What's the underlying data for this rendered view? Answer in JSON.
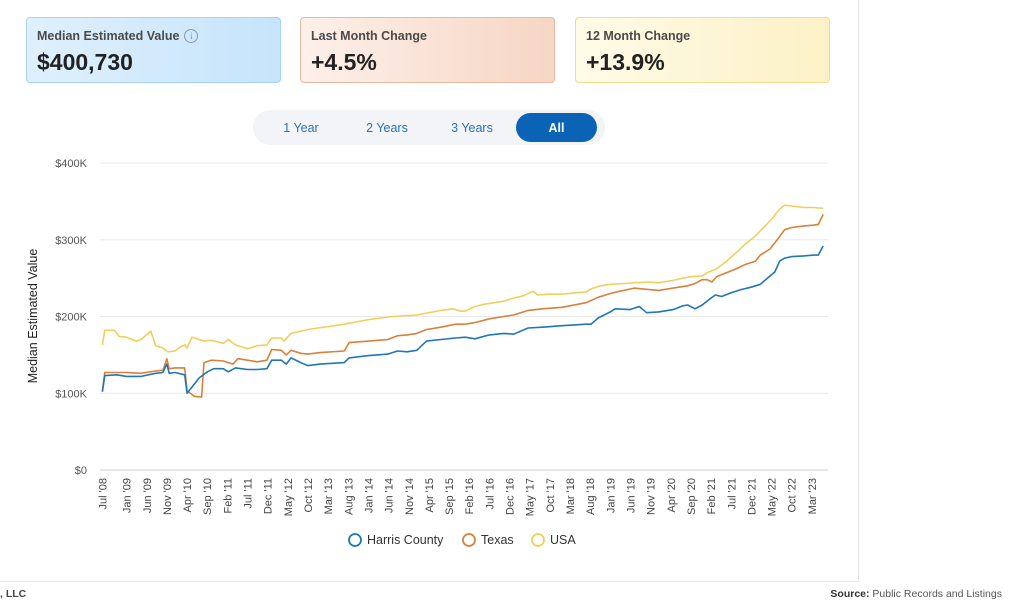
{
  "cards": [
    {
      "label": "Median Estimated Value",
      "value": "$400,730",
      "has_info": true
    },
    {
      "label": "Last Month Change",
      "value": "+4.5%"
    },
    {
      "label": "12 Month Change",
      "value": "+13.9%"
    }
  ],
  "tabs": [
    {
      "label": "1 Year",
      "active": false
    },
    {
      "label": "2 Years",
      "active": false
    },
    {
      "label": "3 Years",
      "active": false
    },
    {
      "label": "All",
      "active": true
    }
  ],
  "footer": {
    "left": ", LLC",
    "source_label": "Source:",
    "source_text": "Public Records and Listings"
  },
  "chart_data": {
    "type": "line",
    "title": "",
    "xlabel": "",
    "ylabel": "Median Estimated Value",
    "ylim": [
      0,
      400000
    ],
    "y_ticks": [
      0,
      100000,
      200000,
      300000,
      400000
    ],
    "y_tick_labels": [
      "$0",
      "$100K",
      "$200K",
      "$300K",
      "$400K"
    ],
    "x_ticks": [
      2008.5,
      2009.0,
      2009.4167,
      2009.8333,
      2010.25,
      2010.6667,
      2011.0833,
      2011.5,
      2011.9167,
      2012.3333,
      2012.75,
      2013.1667,
      2013.5833,
      2014.0,
      2014.4167,
      2014.8333,
      2015.25,
      2015.6667,
      2016.0833,
      2016.5,
      2016.9167,
      2017.3333,
      2017.75,
      2018.1667,
      2018.5833,
      2019.0,
      2019.4167,
      2019.8333,
      2020.25,
      2020.6667,
      2021.0833,
      2021.5,
      2021.9167,
      2022.3333,
      2022.75,
      2023.1667
    ],
    "x_tick_labels": [
      "Jul '08",
      "Jan '09",
      "Jun '09",
      "Nov '09",
      "Apr '10",
      "Sep '10",
      "Feb '11",
      "Jul '11",
      "Dec '11",
      "May '12",
      "Oct '12",
      "Mar '13",
      "Aug '13",
      "Jan '14",
      "Jun '14",
      "Nov '14",
      "Apr '15",
      "Sep '15",
      "Feb '16",
      "Jul '16",
      "Dec '16",
      "May '17",
      "Oct '17",
      "Mar '18",
      "Aug '18",
      "Jan '19",
      "Jun '19",
      "Nov '19",
      "Apr '20",
      "Sep '20",
      "Feb '21",
      "Jul '21",
      "Dec '21",
      "May '22",
      "Oct '22",
      "Mar '23"
    ],
    "legend_position": "bottom-center",
    "series": [
      {
        "name": "Harris County",
        "color": "#1f77b4",
        "points": [
          [
            2008.5,
            102000
          ],
          [
            2008.55,
            123000
          ],
          [
            2008.8,
            124000
          ],
          [
            2009.0,
            122000
          ],
          [
            2009.3,
            122000
          ],
          [
            2009.6,
            126000
          ],
          [
            2009.75,
            127000
          ],
          [
            2009.83,
            138000
          ],
          [
            2009.88,
            126000
          ],
          [
            2010.0,
            127000
          ],
          [
            2010.2,
            124000
          ],
          [
            2010.25,
            100000
          ],
          [
            2010.5,
            120000
          ],
          [
            2010.67,
            128000
          ],
          [
            2010.8,
            132000
          ],
          [
            2011.0,
            132000
          ],
          [
            2011.1,
            128000
          ],
          [
            2011.25,
            133000
          ],
          [
            2011.5,
            131000
          ],
          [
            2011.7,
            131000
          ],
          [
            2011.9,
            132000
          ],
          [
            2012.0,
            143000
          ],
          [
            2012.2,
            143000
          ],
          [
            2012.3,
            138000
          ],
          [
            2012.4,
            146000
          ],
          [
            2012.6,
            140000
          ],
          [
            2012.75,
            136000
          ],
          [
            2013.0,
            138000
          ],
          [
            2013.5,
            140000
          ],
          [
            2013.6,
            146000
          ],
          [
            2014.0,
            149000
          ],
          [
            2014.4,
            151000
          ],
          [
            2014.6,
            155000
          ],
          [
            2014.8,
            154000
          ],
          [
            2015.0,
            156000
          ],
          [
            2015.2,
            168000
          ],
          [
            2015.5,
            170000
          ],
          [
            2015.8,
            172000
          ],
          [
            2016.0,
            173000
          ],
          [
            2016.2,
            171000
          ],
          [
            2016.5,
            176000
          ],
          [
            2016.8,
            178000
          ],
          [
            2017.0,
            177000
          ],
          [
            2017.3,
            185000
          ],
          [
            2017.6,
            186000
          ],
          [
            2018.0,
            188000
          ],
          [
            2018.5,
            190000
          ],
          [
            2018.6,
            190000
          ],
          [
            2018.75,
            198000
          ],
          [
            2019.0,
            206000
          ],
          [
            2019.1,
            210000
          ],
          [
            2019.4,
            209000
          ],
          [
            2019.6,
            213000
          ],
          [
            2019.75,
            205000
          ],
          [
            2020.0,
            206000
          ],
          [
            2020.3,
            209000
          ],
          [
            2020.5,
            214000
          ],
          [
            2020.6,
            215000
          ],
          [
            2020.75,
            210000
          ],
          [
            2020.9,
            215000
          ],
          [
            2021.0,
            220000
          ],
          [
            2021.08,
            224000
          ],
          [
            2021.17,
            228000
          ],
          [
            2021.3,
            226000
          ],
          [
            2021.5,
            231000
          ],
          [
            2021.7,
            235000
          ],
          [
            2021.9,
            238000
          ],
          [
            2022.1,
            242000
          ],
          [
            2022.25,
            250000
          ],
          [
            2022.4,
            258000
          ],
          [
            2022.5,
            272000
          ],
          [
            2022.6,
            276000
          ],
          [
            2022.75,
            278000
          ],
          [
            2023.0,
            279000
          ],
          [
            2023.2,
            280000
          ],
          [
            2023.3,
            280000
          ],
          [
            2023.4,
            292000
          ]
        ]
      },
      {
        "name": "Texas",
        "color": "#d9813a",
        "points": [
          [
            2008.5,
            103000
          ],
          [
            2008.55,
            127000
          ],
          [
            2008.8,
            127000
          ],
          [
            2009.0,
            127000
          ],
          [
            2009.3,
            126000
          ],
          [
            2009.6,
            129000
          ],
          [
            2009.75,
            130000
          ],
          [
            2009.83,
            145000
          ],
          [
            2009.88,
            132000
          ],
          [
            2010.0,
            133000
          ],
          [
            2010.2,
            133000
          ],
          [
            2010.25,
            103000
          ],
          [
            2010.4,
            96000
          ],
          [
            2010.55,
            95000
          ],
          [
            2010.6,
            140000
          ],
          [
            2010.75,
            143000
          ],
          [
            2011.0,
            142000
          ],
          [
            2011.2,
            138000
          ],
          [
            2011.3,
            145000
          ],
          [
            2011.5,
            143000
          ],
          [
            2011.7,
            141000
          ],
          [
            2011.9,
            143000
          ],
          [
            2012.0,
            157000
          ],
          [
            2012.2,
            156000
          ],
          [
            2012.3,
            150000
          ],
          [
            2012.4,
            156000
          ],
          [
            2012.6,
            152000
          ],
          [
            2012.75,
            151000
          ],
          [
            2013.0,
            153000
          ],
          [
            2013.5,
            155000
          ],
          [
            2013.6,
            166000
          ],
          [
            2014.0,
            168000
          ],
          [
            2014.4,
            170000
          ],
          [
            2014.6,
            175000
          ],
          [
            2014.8,
            176000
          ],
          [
            2015.0,
            178000
          ],
          [
            2015.2,
            183000
          ],
          [
            2015.5,
            186000
          ],
          [
            2015.8,
            190000
          ],
          [
            2016.0,
            190000
          ],
          [
            2016.2,
            192000
          ],
          [
            2016.5,
            197000
          ],
          [
            2016.8,
            200000
          ],
          [
            2017.0,
            202000
          ],
          [
            2017.3,
            208000
          ],
          [
            2017.6,
            210000
          ],
          [
            2018.0,
            212000
          ],
          [
            2018.5,
            218000
          ],
          [
            2018.75,
            225000
          ],
          [
            2019.0,
            230000
          ],
          [
            2019.2,
            233000
          ],
          [
            2019.5,
            237000
          ],
          [
            2019.8,
            235000
          ],
          [
            2020.0,
            234000
          ],
          [
            2020.3,
            237000
          ],
          [
            2020.6,
            240000
          ],
          [
            2020.75,
            243000
          ],
          [
            2020.9,
            248000
          ],
          [
            2021.0,
            248000
          ],
          [
            2021.1,
            245000
          ],
          [
            2021.2,
            252000
          ],
          [
            2021.4,
            257000
          ],
          [
            2021.6,
            262000
          ],
          [
            2021.8,
            268000
          ],
          [
            2022.0,
            272000
          ],
          [
            2022.1,
            280000
          ],
          [
            2022.3,
            288000
          ],
          [
            2022.45,
            300000
          ],
          [
            2022.6,
            313000
          ],
          [
            2022.75,
            316000
          ],
          [
            2023.0,
            318000
          ],
          [
            2023.2,
            319000
          ],
          [
            2023.3,
            320000
          ],
          [
            2023.4,
            333000
          ]
        ]
      },
      {
        "name": "USA",
        "color": "#f2cf5b",
        "points": [
          [
            2008.5,
            163000
          ],
          [
            2008.55,
            182000
          ],
          [
            2008.75,
            182000
          ],
          [
            2008.85,
            174000
          ],
          [
            2009.0,
            173000
          ],
          [
            2009.2,
            168000
          ],
          [
            2009.3,
            170000
          ],
          [
            2009.5,
            181000
          ],
          [
            2009.6,
            162000
          ],
          [
            2009.75,
            159000
          ],
          [
            2009.85,
            154000
          ],
          [
            2010.0,
            155000
          ],
          [
            2010.1,
            160000
          ],
          [
            2010.2,
            163000
          ],
          [
            2010.25,
            159000
          ],
          [
            2010.35,
            173000
          ],
          [
            2010.5,
            170000
          ],
          [
            2010.6,
            168000
          ],
          [
            2010.75,
            169000
          ],
          [
            2011.0,
            165000
          ],
          [
            2011.1,
            170000
          ],
          [
            2011.25,
            163000
          ],
          [
            2011.5,
            158000
          ],
          [
            2011.7,
            162000
          ],
          [
            2011.9,
            163000
          ],
          [
            2012.0,
            172000
          ],
          [
            2012.2,
            172000
          ],
          [
            2012.25,
            168000
          ],
          [
            2012.4,
            178000
          ],
          [
            2012.75,
            183000
          ],
          [
            2013.5,
            190000
          ],
          [
            2014.0,
            196000
          ],
          [
            2014.5,
            200000
          ],
          [
            2015.0,
            202000
          ],
          [
            2015.5,
            208000
          ],
          [
            2015.75,
            210000
          ],
          [
            2015.9,
            207000
          ],
          [
            2016.0,
            207000
          ],
          [
            2016.2,
            213000
          ],
          [
            2016.4,
            216000
          ],
          [
            2016.6,
            218000
          ],
          [
            2016.8,
            220000
          ],
          [
            2017.0,
            224000
          ],
          [
            2017.2,
            227000
          ],
          [
            2017.4,
            233000
          ],
          [
            2017.5,
            228000
          ],
          [
            2017.7,
            229000
          ],
          [
            2018.0,
            229000
          ],
          [
            2018.3,
            231000
          ],
          [
            2018.5,
            232000
          ],
          [
            2018.6,
            236000
          ],
          [
            2018.8,
            240000
          ],
          [
            2019.0,
            242000
          ],
          [
            2019.3,
            243000
          ],
          [
            2019.5,
            244000
          ],
          [
            2019.8,
            245000
          ],
          [
            2020.0,
            244000
          ],
          [
            2020.3,
            247000
          ],
          [
            2020.5,
            250000
          ],
          [
            2020.7,
            252000
          ],
          [
            2020.9,
            253000
          ],
          [
            2021.0,
            257000
          ],
          [
            2021.2,
            262000
          ],
          [
            2021.4,
            272000
          ],
          [
            2021.6,
            283000
          ],
          [
            2021.8,
            295000
          ],
          [
            2022.0,
            305000
          ],
          [
            2022.2,
            318000
          ],
          [
            2022.35,
            328000
          ],
          [
            2022.5,
            340000
          ],
          [
            2022.6,
            345000
          ],
          [
            2022.75,
            344000
          ],
          [
            2023.0,
            342000
          ],
          [
            2023.2,
            342000
          ],
          [
            2023.4,
            341000
          ]
        ]
      }
    ]
  }
}
